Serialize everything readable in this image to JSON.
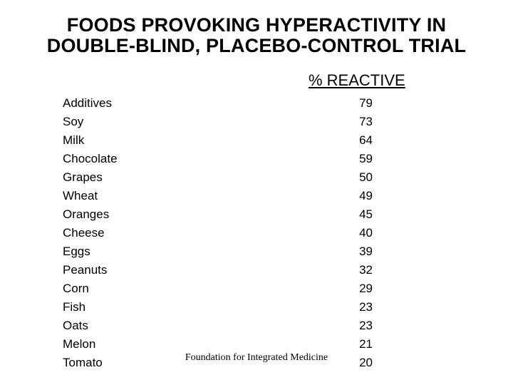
{
  "slide": {
    "title_lines": [
      "FOODS PROVOKING HYPERACTIVITY IN",
      "DOUBLE-BLIND, PLACEBO-CONTROL TRIAL"
    ],
    "column_header": "% REACTIVE",
    "footer": "Foundation for Integrated Medicine",
    "colors": {
      "background": "#ffffff",
      "text": "#000000"
    }
  },
  "chart_data": {
    "type": "table",
    "title": "FOODS PROVOKING HYPERACTIVITY IN DOUBLE-BLIND, PLACEBO-CONTROL TRIAL",
    "value_label": "% REACTIVE",
    "rows": [
      {
        "food": "Additives",
        "value": "79"
      },
      {
        "food": "Soy",
        "value": "73"
      },
      {
        "food": "Milk",
        "value": "64"
      },
      {
        "food": "Chocolate",
        "value": "59"
      },
      {
        "food": "Grapes",
        "value": "50"
      },
      {
        "food": "Wheat",
        "value": "49"
      },
      {
        "food": "Oranges",
        "value": "45"
      },
      {
        "food": "Cheese",
        "value": "40"
      },
      {
        "food": "Eggs",
        "value": "39"
      },
      {
        "food": "Peanuts",
        "value": "32"
      },
      {
        "food": "Corn",
        "value": "29"
      },
      {
        "food": "Fish",
        "value": "23"
      },
      {
        "food": "Oats",
        "value": "23"
      },
      {
        "food": "Melon",
        "value": "21"
      },
      {
        "food": "Tomato",
        "value": "20"
      }
    ]
  }
}
